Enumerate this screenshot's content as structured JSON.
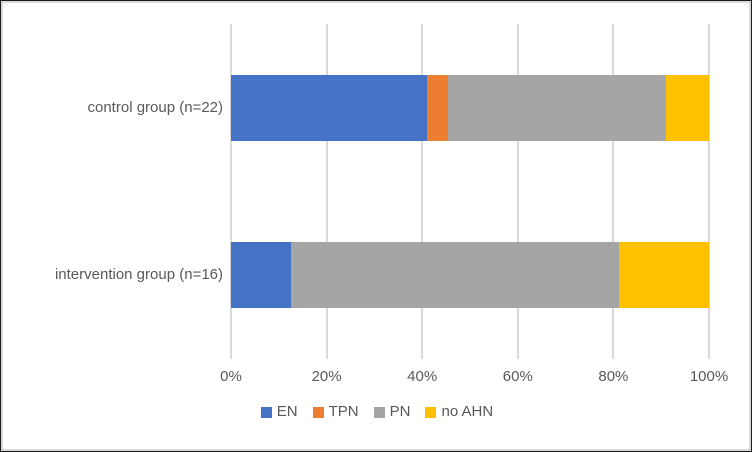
{
  "chart_data": {
    "type": "bar",
    "orientation": "horizontal",
    "stacked": true,
    "unit": "percent",
    "title": "",
    "xlabel": "",
    "ylabel": "",
    "categories": [
      "control group (n=22)",
      "intervention group (n=16)"
    ],
    "series": [
      {
        "name": "EN",
        "color": "#4472C4",
        "values": [
          40.9,
          12.5
        ]
      },
      {
        "name": "TPN",
        "color": "#ED7D31",
        "values": [
          4.6,
          0
        ]
      },
      {
        "name": "PN",
        "color": "#A5A5A5",
        "values": [
          45.5,
          68.75
        ]
      },
      {
        "name": "no AHN",
        "color": "#FFC000",
        "values": [
          9.0,
          18.75
        ]
      }
    ],
    "xlim": [
      0,
      100
    ],
    "x_tick_values": [
      0,
      20,
      40,
      60,
      80,
      100
    ],
    "x_tick_labels": [
      "0%",
      "20%",
      "40%",
      "60%",
      "80%",
      "100%"
    ],
    "grid": "vertical",
    "legend_position": "bottom",
    "legend_labels": [
      "EN",
      "TPN",
      "PN",
      "no AHN"
    ],
    "colors": {
      "gridline": "#D9D9D9",
      "text": "#595959",
      "chart_border": "#D9D9D9",
      "background": "#FFFFFF"
    }
  }
}
